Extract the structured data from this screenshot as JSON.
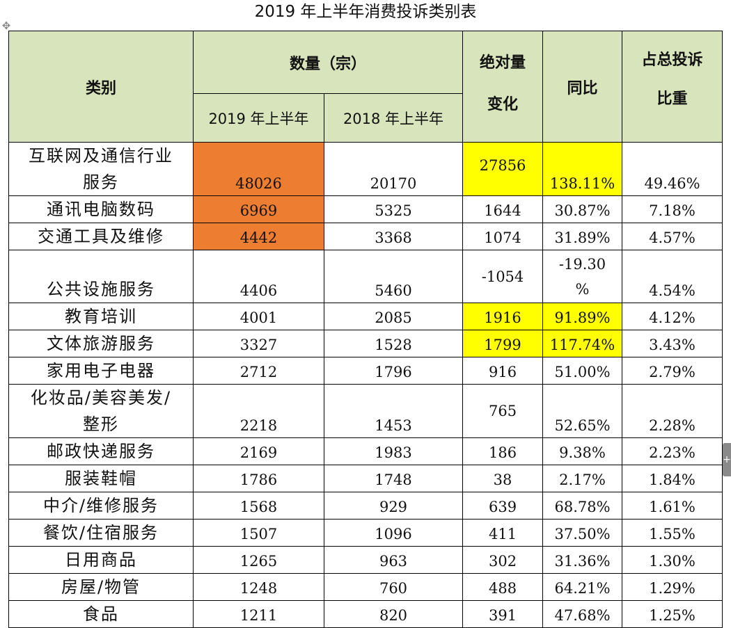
{
  "title": "2019 年上半年消费投诉类别表",
  "colors": {
    "header_bg": "#d8e4bc",
    "highlight_orange": "#ed7d31",
    "highlight_yellow": "#ffff00"
  },
  "icons": {
    "move_handle": "move-icon",
    "side_handle": "plus-icon"
  },
  "header": {
    "category": "类别",
    "count_group": "数量（宗）",
    "year_2019": "2019 年上半年",
    "year_2018": "2018 年上半年",
    "abs_change_line1": "绝对量",
    "abs_change_line2": "变化",
    "yoy": "同比",
    "share_line1": "占总投诉",
    "share_line2": "比重"
  },
  "rows": [
    {
      "category_line1": "互联网及通信行业",
      "category_line2": "服务",
      "y2019": "48026",
      "y2018": "20170",
      "change": "27856",
      "yoy": "138.11%",
      "share": "49.46%"
    },
    {
      "category_line1": "通讯电脑数码",
      "y2019": "6969",
      "y2018": "5325",
      "change": "1644",
      "yoy": "30.87%",
      "share": "7.18%"
    },
    {
      "category_line1": "交通工具及维修",
      "y2019": "4442",
      "y2018": "3368",
      "change": "1074",
      "yoy": "31.89%",
      "share": "4.57%"
    },
    {
      "category_line1": "公共设施服务",
      "y2019": "4406",
      "y2018": "5460",
      "change": "-1054",
      "yoy_line1": "-19.30",
      "yoy_line2": "%",
      "share": "4.54%"
    },
    {
      "category_line1": "教育培训",
      "y2019": "4001",
      "y2018": "2085",
      "change": "1916",
      "yoy": "91.89%",
      "share": "4.12%"
    },
    {
      "category_line1": "文体旅游服务",
      "y2019": "3327",
      "y2018": "1528",
      "change": "1799",
      "yoy": "117.74%",
      "share": "3.43%"
    },
    {
      "category_line1": "家用电子电器",
      "y2019": "2712",
      "y2018": "1796",
      "change": "916",
      "yoy": "51.00%",
      "share": "2.79%"
    },
    {
      "category_line1": "化妆品/美容美发/",
      "category_line2": "整形",
      "y2019": "2218",
      "y2018": "1453",
      "change": "765",
      "yoy": "52.65%",
      "share": "2.28%"
    },
    {
      "category_line1": "邮政快递服务",
      "y2019": "2169",
      "y2018": "1983",
      "change": "186",
      "yoy": "9.38%",
      "share": "2.23%"
    },
    {
      "category_line1": "服装鞋帽",
      "y2019": "1786",
      "y2018": "1748",
      "change": "38",
      "yoy": "2.17%",
      "share": "1.84%"
    },
    {
      "category_line1": "中介/维修服务",
      "y2019": "1568",
      "y2018": "929",
      "change": "639",
      "yoy": "68.78%",
      "share": "1.61%"
    },
    {
      "category_line1": "餐饮/住宿服务",
      "y2019": "1507",
      "y2018": "1096",
      "change": "411",
      "yoy": "37.50%",
      "share": "1.55%"
    },
    {
      "category_line1": "日用商品",
      "y2019": "1265",
      "y2018": "963",
      "change": "302",
      "yoy": "31.36%",
      "share": "1.30%"
    },
    {
      "category_line1": "房屋/物管",
      "y2019": "1248",
      "y2018": "760",
      "change": "488",
      "yoy": "64.21%",
      "share": "1.29%"
    },
    {
      "category_line1": "食品",
      "y2019": "1211",
      "y2018": "820",
      "change": "391",
      "yoy": "47.68%",
      "share": "1.25%"
    }
  ]
}
